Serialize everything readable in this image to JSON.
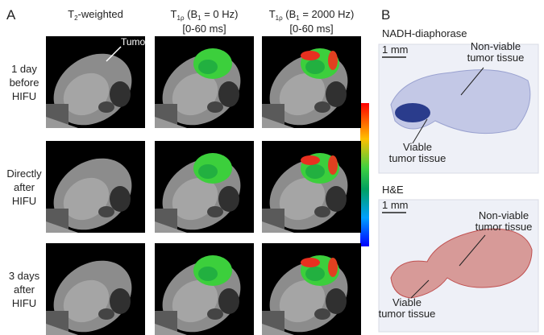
{
  "panel_a": {
    "label": "A",
    "columns": [
      {
        "parts": [
          "T",
          "2",
          "-weighted"
        ]
      },
      {
        "parts": [
          "T",
          "1ρ",
          " (B",
          "1",
          " = 0 Hz)"
        ],
        "range": "[0-60 ms]"
      },
      {
        "parts": [
          "T",
          "1ρ",
          " (B",
          "1",
          " = 2000 Hz)"
        ],
        "range": "[0-60 ms]"
      }
    ],
    "rows": [
      {
        "lines": [
          "1 day",
          "before",
          "HIFU"
        ]
      },
      {
        "lines": [
          "Directly",
          "after",
          "HIFU"
        ]
      },
      {
        "lines": [
          "3 days",
          "after",
          "HIFU"
        ]
      }
    ],
    "annotation": "Tumor"
  },
  "panel_b": {
    "label": "B",
    "stains": [
      {
        "title": "NADH-diaphorase",
        "scale": "1 mm",
        "labels": [
          {
            "lines": [
              "Non-viable",
              "tumor tissue"
            ]
          },
          {
            "lines": [
              "Viable",
              "tumor tissue"
            ]
          }
        ]
      },
      {
        "title": "H&E",
        "scale": "1 mm",
        "labels": [
          {
            "lines": [
              "Non-viable",
              "tumor tissue"
            ]
          },
          {
            "lines": [
              "Viable",
              "tumor tissue"
            ]
          }
        ]
      }
    ]
  }
}
